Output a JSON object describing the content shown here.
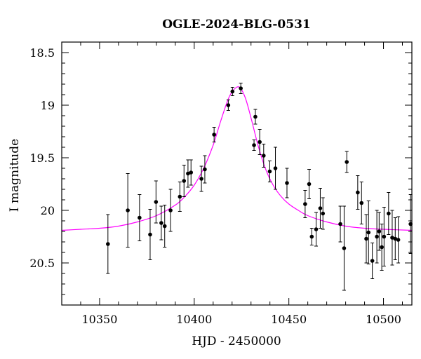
{
  "chart_data": {
    "type": "scatter",
    "title": "OGLE-2024-BLG-0531",
    "xlabel": "HJD - 2450000",
    "ylabel": "I magnitude",
    "xlim": [
      10330,
      10515
    ],
    "ylim": [
      20.9,
      18.4
    ],
    "y_inverted": true,
    "x_ticks": [
      10350,
      10400,
      10450,
      10500
    ],
    "y_ticks": [
      18.5,
      19,
      19.5,
      20,
      20.5
    ],
    "x_tick_labels": [
      "10350",
      "10400",
      "10450",
      "10500"
    ],
    "y_tick_labels": [
      "18.5",
      "19",
      "19.5",
      "20",
      "20.5"
    ],
    "grid": false,
    "legend": "none",
    "model_color": "#ff00ff",
    "model": {
      "x": [
        10330,
        10340,
        10350,
        10360,
        10370,
        10380,
        10390,
        10395,
        10400,
        10405,
        10410,
        10414,
        10418,
        10421,
        10424,
        10427,
        10430,
        10434,
        10438,
        10442,
        10446,
        10450,
        10455,
        10460,
        10470,
        10480,
        10490,
        10500,
        10515
      ],
      "y": [
        20.19,
        20.18,
        20.17,
        20.15,
        20.11,
        20.05,
        19.95,
        19.87,
        19.76,
        19.6,
        19.38,
        19.15,
        18.94,
        18.85,
        18.83,
        18.93,
        19.12,
        19.4,
        19.62,
        19.77,
        19.87,
        19.94,
        20.0,
        20.05,
        20.11,
        20.15,
        20.17,
        20.18,
        20.19
      ]
    },
    "series": [
      {
        "x": [
          10354.4,
          10364.9,
          10371.1,
          10376.7,
          10379.8,
          10382.6,
          10384.4,
          10387.5,
          10392.4,
          10394.6,
          10396.7,
          10398.3,
          10403.8,
          10405.6,
          10410.5,
          10418.0,
          10420.2,
          10424.6,
          10431.6,
          10432.3,
          10434.6,
          10436.7,
          10439.9,
          10442.9,
          10449.0,
          10458.6,
          10460.7,
          10462.1,
          10464.4,
          10466.6,
          10468.0,
          10477.2,
          10479.2,
          10480.6,
          10486.4,
          10488.4,
          10490.9,
          10492.1,
          10494.1,
          10496.5,
          10497.7,
          10499.1,
          10500.3,
          10502.7,
          10504.6,
          10506.2,
          10507.8,
          10514.3
        ],
        "y": [
          20.32,
          20.0,
          20.07,
          20.23,
          19.92,
          20.12,
          20.15,
          20.0,
          19.87,
          19.72,
          19.65,
          19.64,
          19.7,
          19.61,
          19.28,
          19.0,
          18.87,
          18.84,
          19.38,
          19.11,
          19.35,
          19.48,
          19.63,
          19.6,
          19.74,
          19.94,
          19.75,
          20.25,
          20.18,
          19.98,
          20.03,
          20.13,
          20.36,
          19.54,
          19.83,
          19.93,
          20.27,
          20.21,
          20.48,
          20.25,
          20.2,
          20.35,
          20.25,
          20.03,
          20.26,
          20.27,
          20.28,
          20.13
        ],
        "err": [
          0.28,
          0.35,
          0.22,
          0.24,
          0.2,
          0.16,
          0.2,
          0.2,
          0.14,
          0.15,
          0.13,
          0.12,
          0.12,
          0.13,
          0.07,
          0.05,
          0.04,
          0.05,
          0.05,
          0.07,
          0.12,
          0.11,
          0.1,
          0.2,
          0.14,
          0.13,
          0.14,
          0.08,
          0.16,
          0.19,
          0.15,
          0.17,
          0.4,
          0.1,
          0.16,
          0.2,
          0.23,
          0.3,
          0.17,
          0.25,
          0.18,
          0.22,
          0.28,
          0.2,
          0.26,
          0.2,
          0.22,
          0.28
        ]
      }
    ]
  }
}
